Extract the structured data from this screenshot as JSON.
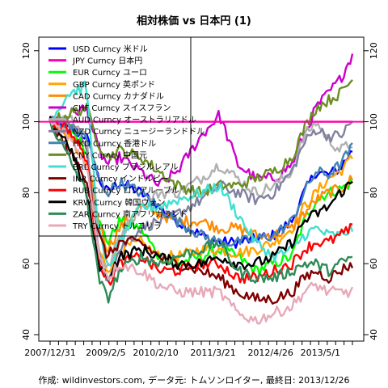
{
  "chart_data": {
    "type": "line",
    "title": "相対株価 vs 日本円 (1)",
    "footer": "作成: wildinvestors.com, データ元: トムソンロイター, 最終日: 2013/12/26",
    "xlabel": "",
    "ylabel": "",
    "x_ticks": [
      "2007/12/31",
      "2009/2/5",
      "2010/2/10",
      "2011/3/21",
      "2012/4/26",
      "2013/5/1"
    ],
    "x_tick_pos": [
      0.0,
      0.184,
      0.349,
      0.539,
      0.729,
      0.894
    ],
    "y_ticks": [
      40,
      60,
      80,
      100,
      120
    ],
    "ylim": [
      40,
      122
    ],
    "x_range": [
      0,
      1
    ],
    "reference_line": 100,
    "legend_position": "top-left",
    "series": [
      {
        "name": "USD Curncy 米ドル",
        "color": "#0000ff",
        "x": [
          0,
          0.06,
          0.12,
          0.16,
          0.19,
          0.23,
          0.3,
          0.36,
          0.42,
          0.5,
          0.56,
          0.62,
          0.68,
          0.74,
          0.8,
          0.84,
          0.88,
          0.92,
          0.96,
          1.0
        ],
        "values": [
          100,
          98,
          96,
          84,
          80,
          83,
          80,
          76,
          72,
          68,
          66,
          66,
          67,
          68,
          72,
          80,
          86,
          85,
          87,
          92
        ]
      },
      {
        "name": "JPY Curncy 日本円",
        "color": "#ff00aa",
        "x": [
          0,
          1.0
        ],
        "values": [
          100,
          100
        ]
      },
      {
        "name": "EUR Curncy ユーロ",
        "color": "#00ff00",
        "x": [
          0,
          0.06,
          0.12,
          0.16,
          0.19,
          0.23,
          0.3,
          0.36,
          0.42,
          0.5,
          0.56,
          0.62,
          0.68,
          0.74,
          0.8,
          0.84,
          0.88,
          0.92,
          0.96,
          1.0
        ],
        "values": [
          100,
          99,
          92,
          72,
          66,
          72,
          70,
          62,
          60,
          62,
          64,
          62,
          58,
          60,
          62,
          72,
          78,
          80,
          81,
          83
        ]
      },
      {
        "name": "GBP Curncy 英ポンド",
        "color": "#ffa500",
        "x": [
          0,
          0.06,
          0.12,
          0.16,
          0.19,
          0.23,
          0.3,
          0.36,
          0.42,
          0.5,
          0.56,
          0.62,
          0.68,
          0.74,
          0.8,
          0.84,
          0.88,
          0.92,
          0.96,
          1.0
        ],
        "values": [
          100,
          96,
          88,
          64,
          58,
          64,
          66,
          62,
          62,
          64,
          64,
          63,
          64,
          66,
          70,
          76,
          80,
          84,
          86,
          90
        ]
      },
      {
        "name": "CAD Curncy カナダドル",
        "color": "#ff8c00",
        "x": [
          0,
          0.06,
          0.12,
          0.16,
          0.19,
          0.23,
          0.3,
          0.36,
          0.42,
          0.5,
          0.56,
          0.62,
          0.68,
          0.74,
          0.8,
          0.84,
          0.88,
          0.92,
          0.96,
          1.0
        ],
        "values": [
          100,
          96,
          92,
          72,
          64,
          70,
          76,
          74,
          72,
          72,
          70,
          70,
          68,
          68,
          70,
          74,
          78,
          80,
          81,
          84
        ]
      },
      {
        "name": "CHF Curncy スイスフラン",
        "color": "#cc00cc",
        "x": [
          0,
          0.06,
          0.12,
          0.16,
          0.19,
          0.23,
          0.3,
          0.36,
          0.42,
          0.5,
          0.56,
          0.62,
          0.68,
          0.74,
          0.8,
          0.84,
          0.88,
          0.92,
          0.96,
          1.0
        ],
        "values": [
          100,
          102,
          104,
          92,
          88,
          90,
          86,
          82,
          86,
          96,
          102,
          88,
          84,
          84,
          88,
          96,
          104,
          108,
          112,
          119
        ]
      },
      {
        "name": "AUD Curncy オーストラリアドル",
        "color": "#b0b0b0",
        "x": [
          0,
          0.06,
          0.12,
          0.16,
          0.19,
          0.23,
          0.3,
          0.36,
          0.42,
          0.5,
          0.56,
          0.62,
          0.68,
          0.74,
          0.8,
          0.84,
          0.88,
          0.92,
          0.96,
          1.0
        ],
        "values": [
          100,
          102,
          96,
          64,
          58,
          68,
          76,
          80,
          80,
          84,
          88,
          84,
          80,
          82,
          86,
          96,
          100,
          95,
          92,
          94
        ]
      },
      {
        "name": "NZD Curncy ニュージーランドドル",
        "color": "#8080a0",
        "x": [
          0,
          0.06,
          0.12,
          0.16,
          0.19,
          0.23,
          0.3,
          0.36,
          0.42,
          0.5,
          0.56,
          0.62,
          0.68,
          0.74,
          0.8,
          0.84,
          0.88,
          0.92,
          0.96,
          1.0
        ],
        "values": [
          100,
          100,
          94,
          62,
          56,
          64,
          70,
          72,
          74,
          78,
          82,
          80,
          78,
          80,
          86,
          94,
          98,
          96,
          96,
          100
        ]
      },
      {
        "name": "HKD Curncy 香港ドル",
        "color": "#4682b4",
        "x": [
          0,
          0.06,
          0.12,
          0.16,
          0.19,
          0.23,
          0.3,
          0.36,
          0.42,
          0.5,
          0.56,
          0.62,
          0.68,
          0.74,
          0.8,
          0.84,
          0.88,
          0.92,
          0.96,
          1.0
        ],
        "values": [
          100,
          98,
          96,
          84,
          80,
          83,
          80,
          76,
          72,
          68,
          66,
          66,
          67,
          68,
          72,
          80,
          86,
          85,
          88,
          93
        ]
      },
      {
        "name": "CNY Curncy 中国元",
        "color": "#6b8e23",
        "x": [
          0,
          0.06,
          0.12,
          0.16,
          0.19,
          0.23,
          0.3,
          0.36,
          0.42,
          0.5,
          0.56,
          0.62,
          0.68,
          0.74,
          0.8,
          0.84,
          0.88,
          0.92,
          0.96,
          1.0
        ],
        "values": [
          100,
          102,
          104,
          94,
          90,
          92,
          90,
          86,
          82,
          80,
          82,
          82,
          84,
          86,
          90,
          98,
          104,
          106,
          108,
          112
        ]
      },
      {
        "name": "BRL Curncy ブラジルレアル",
        "color": "#40e0d0",
        "x": [
          0,
          0.06,
          0.12,
          0.16,
          0.19,
          0.23,
          0.3,
          0.36,
          0.42,
          0.5,
          0.56,
          0.62,
          0.68,
          0.74,
          0.8,
          0.84,
          0.88,
          0.92,
          0.96,
          1.0
        ],
        "values": [
          100,
          108,
          110,
          70,
          58,
          66,
          76,
          76,
          78,
          80,
          82,
          74,
          66,
          62,
          64,
          68,
          70,
          68,
          68,
          70
        ]
      },
      {
        "name": "INR Curncy インドルピー",
        "color": "#800000",
        "x": [
          0,
          0.06,
          0.12,
          0.16,
          0.19,
          0.23,
          0.3,
          0.36,
          0.42,
          0.5,
          0.56,
          0.62,
          0.68,
          0.74,
          0.8,
          0.84,
          0.88,
          0.92,
          0.96,
          1.0
        ],
        "values": [
          100,
          92,
          84,
          68,
          62,
          66,
          66,
          62,
          60,
          58,
          56,
          52,
          50,
          50,
          52,
          56,
          58,
          56,
          58,
          60
        ]
      },
      {
        "name": "RUB Curncy ロシアルーブル",
        "color": "#ff0000",
        "x": [
          0,
          0.06,
          0.12,
          0.16,
          0.19,
          0.23,
          0.3,
          0.36,
          0.42,
          0.5,
          0.56,
          0.62,
          0.68,
          0.74,
          0.8,
          0.84,
          0.88,
          0.92,
          0.96,
          1.0
        ],
        "values": [
          100,
          98,
          90,
          62,
          54,
          60,
          62,
          58,
          58,
          60,
          60,
          56,
          56,
          58,
          60,
          64,
          66,
          66,
          68,
          70
        ]
      },
      {
        "name": "KRW Curncy 韓国ウォン",
        "color": "#000000",
        "x": [
          0,
          0.06,
          0.12,
          0.16,
          0.19,
          0.23,
          0.3,
          0.36,
          0.42,
          0.5,
          0.56,
          0.62,
          0.68,
          0.74,
          0.8,
          0.84,
          0.88,
          0.92,
          0.96,
          1.0
        ],
        "values": [
          100,
          94,
          80,
          60,
          56,
          62,
          64,
          62,
          60,
          60,
          62,
          60,
          60,
          62,
          66,
          72,
          74,
          76,
          80,
          83
        ]
      },
      {
        "name": "ZAR Curncy 南アフリカランド",
        "color": "#2e8b57",
        "x": [
          0,
          0.06,
          0.12,
          0.16,
          0.19,
          0.23,
          0.3,
          0.36,
          0.42,
          0.5,
          0.56,
          0.62,
          0.68,
          0.74,
          0.8,
          0.84,
          0.88,
          0.92,
          0.96,
          1.0
        ],
        "values": [
          100,
          90,
          80,
          56,
          50,
          58,
          62,
          60,
          62,
          64,
          66,
          58,
          56,
          56,
          58,
          60,
          60,
          58,
          60,
          62
        ]
      },
      {
        "name": "TRY Curncy トルコリラ",
        "color": "#e8a8b8",
        "x": [
          0,
          0.06,
          0.12,
          0.16,
          0.19,
          0.23,
          0.3,
          0.36,
          0.42,
          0.5,
          0.56,
          0.62,
          0.68,
          0.74,
          0.8,
          0.84,
          0.88,
          0.92,
          0.96,
          1.0
        ],
        "values": [
          100,
          96,
          88,
          64,
          56,
          60,
          58,
          54,
          52,
          52,
          52,
          46,
          44,
          46,
          48,
          52,
          54,
          52,
          52,
          52
        ]
      }
    ]
  }
}
